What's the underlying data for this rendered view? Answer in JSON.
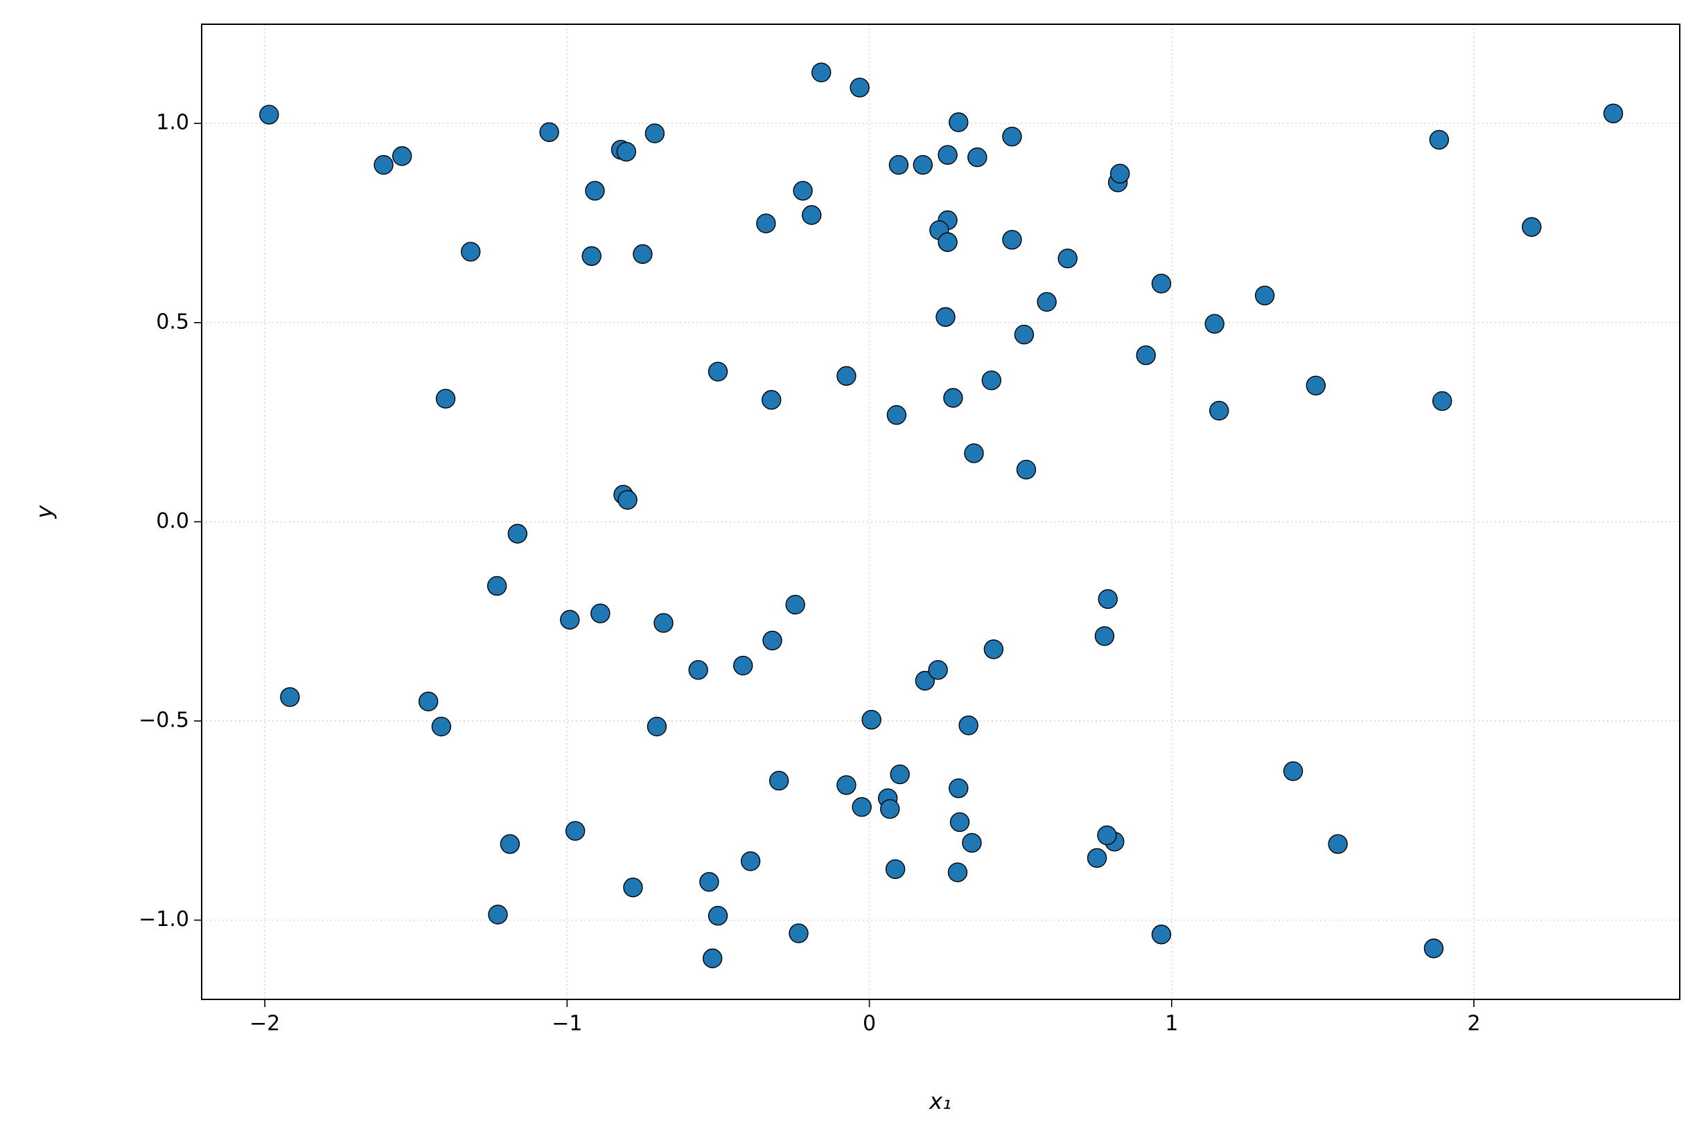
{
  "chart_data": {
    "type": "scatter",
    "x_label": "x₁",
    "y_label": "y",
    "xlim": [
      -2.209,
      2.681
    ],
    "ylim": [
      -1.199,
      1.249
    ],
    "xticks": [
      {
        "value": -2,
        "label": "−2"
      },
      {
        "value": -1,
        "label": "−1"
      },
      0,
      1,
      2
    ],
    "yticks": [
      {
        "value": -1.0,
        "label": "−1.0"
      },
      {
        "value": -0.5,
        "label": "−0.5"
      },
      {
        "value": 0.0,
        "label": "0.0"
      },
      0.5,
      {
        "value": 1.0,
        "label": "1.0"
      }
    ],
    "grid": true,
    "color": "#1f77b4",
    "x": [
      -1.986,
      -1.607,
      -1.546,
      -1.319,
      -1.402,
      -1.059,
      -0.908,
      -0.919,
      -0.822,
      -0.804,
      -0.71,
      -0.75,
      -0.159,
      -0.032,
      -0.22,
      -0.191,
      -0.342,
      -0.501,
      -0.324,
      -0.076,
      0.09,
      0.295,
      0.472,
      0.097,
      0.177,
      0.259,
      0.357,
      0.259,
      0.231,
      0.259,
      0.472,
      0.656,
      0.822,
      0.829,
      0.587,
      0.252,
      0.512,
      0.277,
      0.404,
      0.346,
      0.519,
      0.966,
      0.915,
      1.142,
      1.308,
      1.157,
      1.477,
      1.885,
      2.191,
      2.461,
      1.895,
      -0.814,
      -0.8,
      -1.164,
      -1.232,
      -0.991,
      -0.89,
      -0.681,
      -0.245,
      -0.321,
      -0.566,
      -0.418,
      -1.917,
      -1.459,
      -1.416,
      -0.703,
      0.007,
      0.184,
      0.227,
      0.411,
      0.328,
      0.789,
      0.778,
      -0.299,
      -0.076,
      -0.025,
      0.061,
      0.068,
      0.101,
      0.295,
      0.299,
      0.339,
      0.086,
      0.292,
      1.402,
      1.55,
      0.811,
      0.786,
      0.753,
      0.966,
      1.867,
      -1.189,
      -0.973,
      -1.229,
      -0.782,
      -0.53,
      -0.393,
      -0.501,
      -0.519,
      -0.234
    ],
    "values": [
      1.022,
      0.896,
      0.918,
      0.678,
      0.309,
      0.978,
      0.831,
      0.667,
      0.934,
      0.929,
      0.975,
      0.672,
      1.128,
      1.09,
      0.831,
      0.77,
      0.749,
      0.377,
      0.306,
      0.366,
      0.268,
      1.003,
      0.967,
      0.896,
      0.896,
      0.921,
      0.915,
      0.757,
      0.732,
      0.702,
      0.708,
      0.661,
      0.852,
      0.874,
      0.552,
      0.514,
      0.47,
      0.311,
      0.355,
      0.172,
      0.131,
      0.598,
      0.418,
      0.497,
      0.568,
      0.279,
      0.342,
      0.959,
      0.74,
      1.025,
      0.303,
      0.068,
      0.055,
      -0.03,
      -0.161,
      -0.246,
      -0.23,
      -0.254,
      -0.208,
      -0.298,
      -0.372,
      -0.361,
      -0.44,
      -0.451,
      -0.514,
      -0.514,
      -0.497,
      -0.399,
      -0.372,
      -0.32,
      -0.511,
      -0.194,
      -0.287,
      -0.65,
      -0.661,
      -0.716,
      -0.694,
      -0.721,
      -0.634,
      -0.669,
      -0.754,
      -0.806,
      -0.872,
      -0.88,
      -0.626,
      -0.809,
      -0.803,
      -0.787,
      -0.844,
      -1.036,
      -1.071,
      -0.809,
      -0.776,
      -0.986,
      -0.918,
      -0.904,
      -0.852,
      -0.989,
      -1.096,
      -1.033
    ]
  }
}
